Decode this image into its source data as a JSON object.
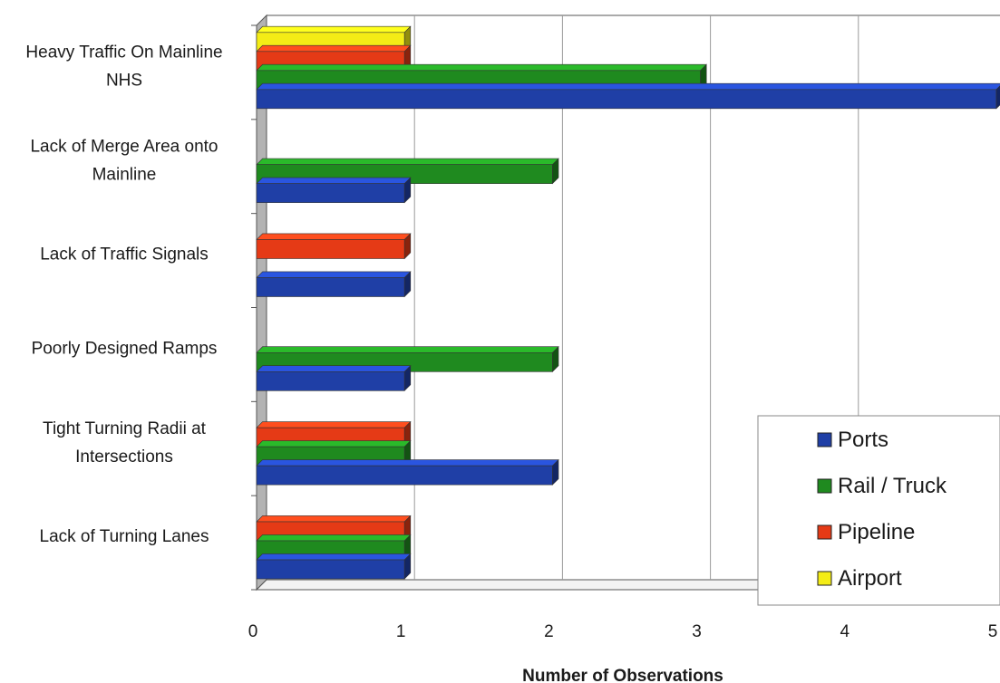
{
  "chart_data": {
    "type": "bar",
    "orientation": "horizontal",
    "three_d": true,
    "title": "",
    "xlabel": "Number of Observations",
    "ylabel": "",
    "xlim": [
      0,
      5
    ],
    "xticks": [
      "0",
      "1",
      "2",
      "3",
      "4",
      "5"
    ],
    "grid": true,
    "legend_position": "bottom-right",
    "categories": [
      [
        "Heavy Traffic On Mainline",
        "NHS"
      ],
      [
        "Lack of Merge Area onto",
        "Mainline"
      ],
      [
        "Lack of Traffic Signals"
      ],
      [
        "Poorly Designed Ramps"
      ],
      [
        "Tight Turning Radii at",
        "Intersections"
      ],
      [
        "Lack of Turning Lanes"
      ]
    ],
    "series": [
      {
        "name": "Ports",
        "color": "#1f3fa6",
        "values": [
          5,
          1,
          1,
          1,
          2,
          1
        ]
      },
      {
        "name": "Rail / Truck",
        "color": "#1f8a1f",
        "values": [
          3,
          2,
          0,
          2,
          1,
          1
        ]
      },
      {
        "name": "Pipeline",
        "color": "#e53a16",
        "values": [
          1,
          0,
          1,
          0,
          1,
          1
        ]
      },
      {
        "name": "Airport",
        "color": "#f4ec16",
        "values": [
          1,
          0,
          0,
          0,
          0,
          0
        ]
      }
    ]
  }
}
